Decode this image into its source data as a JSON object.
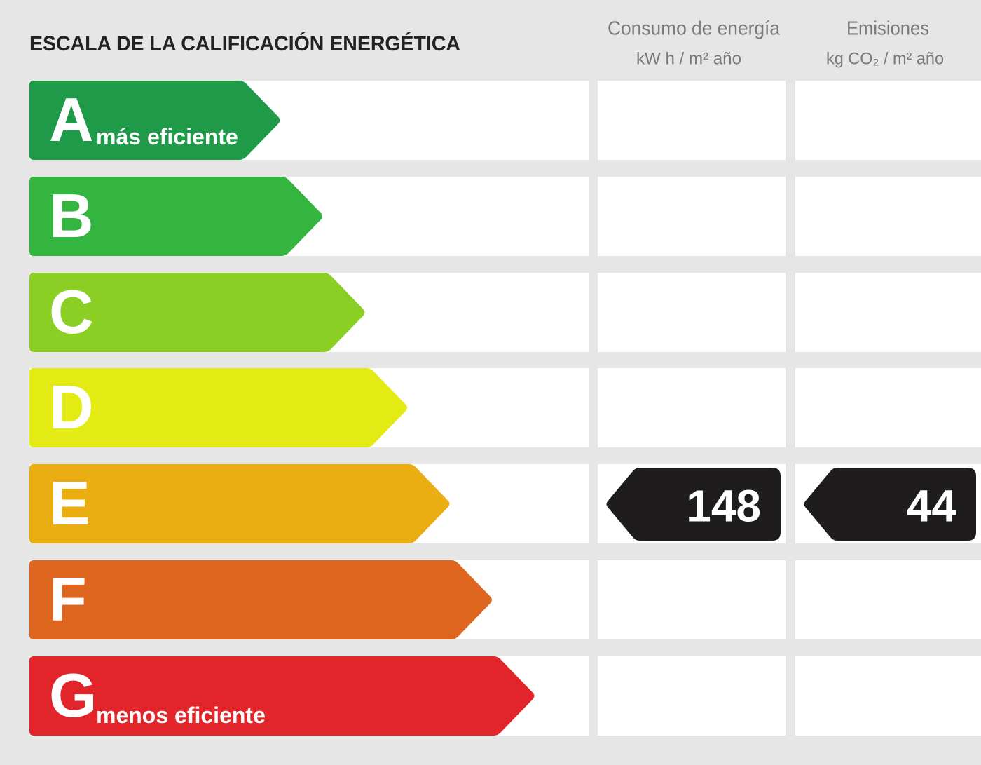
{
  "title": "ESCALA DE LA CALIFICACIÓN ENERGÉTICA",
  "columns": {
    "consumo": {
      "title": "Consumo de energía",
      "unit": "kW h / m² año"
    },
    "emisiones": {
      "title": "Emisiones",
      "unit": "kg CO₂ / m² año"
    }
  },
  "rows": [
    {
      "letter": "A",
      "label": "más eficiente",
      "color": "#1f9a48",
      "consumo": null,
      "emisiones": null
    },
    {
      "letter": "B",
      "color": "#33b540",
      "consumo": null,
      "emisiones": null
    },
    {
      "letter": "C",
      "color": "#8bcf25",
      "consumo": null,
      "emisiones": null
    },
    {
      "letter": "D",
      "color": "#e3ea14",
      "consumo": null,
      "emisiones": null
    },
    {
      "letter": "E",
      "color": "#ebae12",
      "consumo": 148,
      "emisiones": 44
    },
    {
      "letter": "F",
      "color": "#de661e",
      "consumo": null,
      "emisiones": null
    },
    {
      "letter": "G",
      "label": "menos eficiente",
      "color": "#e2242b",
      "consumo": null,
      "emisiones": null
    }
  ]
}
